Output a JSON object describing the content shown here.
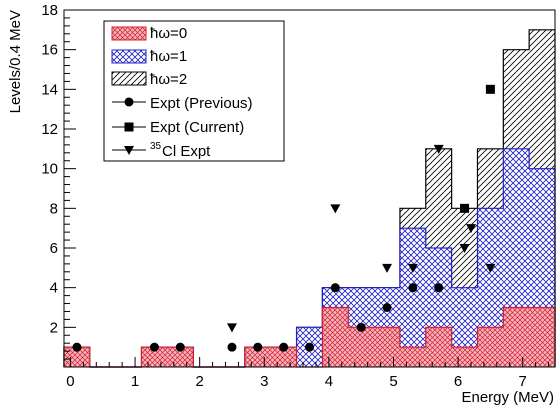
{
  "chart_data": {
    "type": "bar",
    "xlabel": "Energy (MeV)",
    "ylabel": "Levels/0.4 MeV",
    "xlim": [
      -0.1,
      7.5
    ],
    "ylim": [
      0,
      18
    ],
    "bin_width": 0.4,
    "bin_starts": [
      -0.1,
      0.3,
      0.7,
      1.1,
      1.5,
      1.9,
      2.3,
      2.7,
      3.1,
      3.5,
      3.9,
      4.3,
      4.7,
      5.1,
      5.5,
      5.9,
      6.3,
      6.7,
      7.1
    ],
    "x_ticks": [
      "0",
      "1",
      "2",
      "3",
      "4",
      "5",
      "6",
      "7"
    ],
    "y_ticks": [
      "2",
      "4",
      "6",
      "8",
      "10",
      "12",
      "14",
      "16",
      "18"
    ],
    "series": [
      {
        "name": "ħω=0",
        "values": [
          1,
          0,
          0,
          1,
          1,
          0,
          0,
          1,
          1,
          0,
          3,
          2,
          2,
          1,
          2,
          1,
          2,
          3,
          3
        ]
      },
      {
        "name": "ħω=1",
        "values": [
          1,
          0,
          0,
          1,
          1,
          0,
          0,
          1,
          1,
          2,
          4,
          4,
          4,
          7,
          6,
          4,
          8,
          11,
          10
        ]
      },
      {
        "name": "ħω=2",
        "values": [
          1,
          0,
          0,
          1,
          1,
          0,
          0,
          1,
          1,
          2,
          4,
          4,
          4,
          8,
          11,
          8,
          11,
          16,
          17
        ]
      }
    ],
    "points": [
      {
        "name": "Expt (Previous)",
        "marker": "circle",
        "x": [
          0.1,
          1.3,
          1.7,
          2.5,
          2.9,
          3.3,
          3.7,
          4.1,
          4.5,
          4.9,
          5.3,
          5.7
        ],
        "y": [
          1,
          1,
          1,
          1,
          1,
          1,
          1,
          4,
          2,
          3,
          4,
          4
        ]
      },
      {
        "name": "Expt (Current)",
        "marker": "square",
        "x": [
          6.1,
          6.5
        ],
        "y": [
          8,
          14
        ]
      },
      {
        "name": "Cl Expt",
        "marker": "triangle",
        "x": [
          2.5,
          4.1,
          4.9,
          5.3,
          5.7,
          6.1,
          6.2,
          6.5
        ],
        "y": [
          2,
          8,
          5,
          5,
          11,
          6,
          7,
          5
        ]
      }
    ],
    "legend": {
      "position": "top-left",
      "entries": [
        "ħω=0",
        "ħω=1",
        "ħω=2",
        "Expt (Previous)",
        "Expt (Current)",
        "Cl Expt"
      ],
      "superscripts": [
        "",
        "",
        "",
        "",
        "",
        "35"
      ]
    },
    "colors": {
      "hw0_fill": "#f7b3c0",
      "hw0_hatch": "#d0202a",
      "hw1_hatch": "#2020c8",
      "hw2_hatch": "#000000",
      "frame": "#000000"
    }
  }
}
